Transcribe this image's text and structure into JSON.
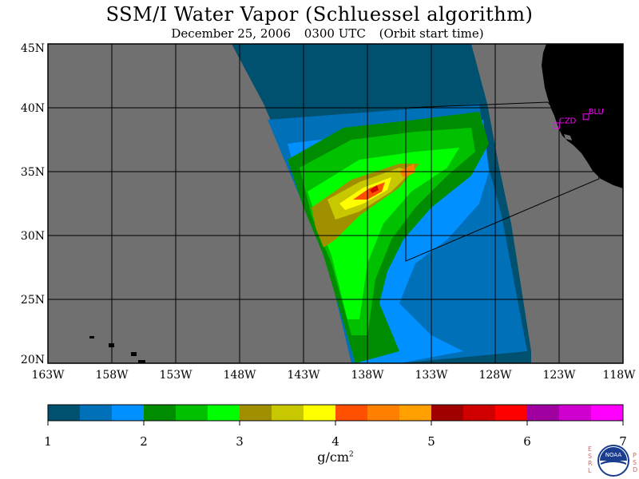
{
  "title": "SSM/I Water Vapor (Schluessel algorithm)",
  "subtitle": {
    "date": "December 25, 2006",
    "time": "0300 UTC",
    "note": "(Orbit start time)"
  },
  "map": {
    "lat_labels": [
      "45N",
      "40N",
      "35N",
      "30N",
      "25N",
      "20N"
    ],
    "lon_labels": [
      "163W",
      "158W",
      "153W",
      "148W",
      "143W",
      "138W",
      "133W",
      "128W",
      "123W",
      "118W"
    ],
    "stations": [
      {
        "code": "CZD",
        "lon": -123.2,
        "lat": 38.6
      },
      {
        "code": "BLU",
        "lon": -120.9,
        "lat": 39.3
      }
    ],
    "colors": {
      "no_data": "#707070",
      "land": "#000000",
      "grid": "#000000",
      "station": "#ff00ff"
    }
  },
  "colorbar": {
    "ticks": [
      "1",
      "2",
      "3",
      "4",
      "5",
      "6",
      "7"
    ],
    "colors": [
      "#005070",
      "#0070b8",
      "#0090ff",
      "#008c00",
      "#00c000",
      "#00ff00",
      "#a09000",
      "#c8c800",
      "#ffff00",
      "#ff5000",
      "#ff8000",
      "#ffa000",
      "#a00000",
      "#d00000",
      "#ff0000",
      "#a000a0",
      "#d000d0",
      "#ff00ff"
    ],
    "units": "g/cm",
    "units_exp": "2"
  },
  "logo": {
    "left_letters": "ESRL",
    "right_letters": "PSD",
    "center_text": "NOAA"
  }
}
